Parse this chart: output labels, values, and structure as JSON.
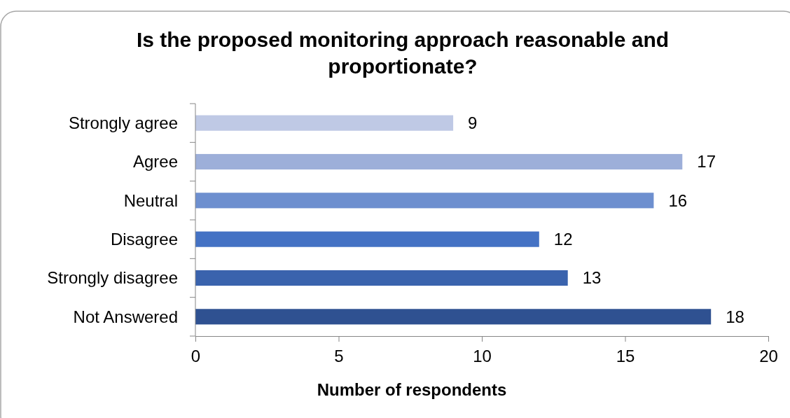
{
  "chart_data": {
    "type": "bar",
    "orientation": "horizontal",
    "title": "Is the proposed monitoring approach reasonable and proportionate?",
    "xlabel": "Number of respondents",
    "categories": [
      "Strongly agree",
      "Agree",
      "Neutral",
      "Disagree",
      "Strongly disagree",
      "Not Answered"
    ],
    "values": [
      9,
      17,
      16,
      12,
      13,
      18
    ],
    "colors": [
      "#bfc9e5",
      "#9dafd9",
      "#6d8fcf",
      "#4472c4",
      "#3a63ad",
      "#2f5191"
    ],
    "xlim": [
      0,
      20
    ],
    "xticks": [
      0,
      5,
      10,
      15,
      20
    ],
    "grid": false,
    "data_labels": true
  }
}
